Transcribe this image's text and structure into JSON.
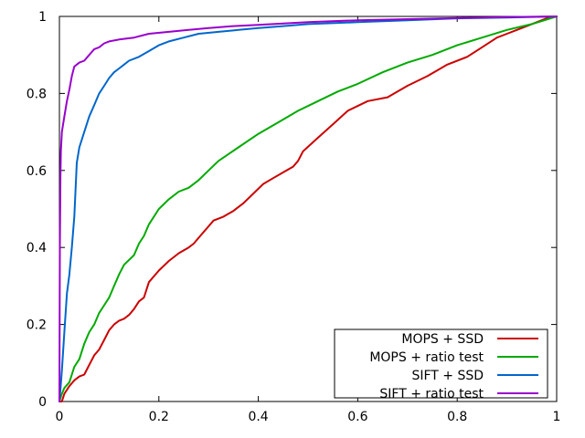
{
  "chart_data": {
    "type": "line",
    "title": "",
    "xlabel": "",
    "ylabel": "",
    "xlim": [
      0,
      1
    ],
    "ylim": [
      0,
      1
    ],
    "grid": false,
    "legend_position": "bottom-right",
    "x_ticks": [
      {
        "value": 0,
        "label": "0"
      },
      {
        "value": 0.2,
        "label": "0.2"
      },
      {
        "value": 0.4,
        "label": "0.4"
      },
      {
        "value": 0.6,
        "label": "0.6"
      },
      {
        "value": 0.8,
        "label": "0.8"
      },
      {
        "value": 1,
        "label": "1"
      }
    ],
    "y_ticks": [
      {
        "value": 0,
        "label": "0"
      },
      {
        "value": 0.2,
        "label": "0.2"
      },
      {
        "value": 0.4,
        "label": "0.4"
      },
      {
        "value": 0.6,
        "label": "0.6"
      },
      {
        "value": 0.8,
        "label": "0.8"
      },
      {
        "value": 1,
        "label": "1"
      }
    ],
    "series": [
      {
        "name": "MOPS + SSD",
        "color": "#cc0000",
        "points": [
          [
            0,
            0
          ],
          [
            0.005,
            0
          ],
          [
            0.01,
            0.02
          ],
          [
            0.02,
            0.04
          ],
          [
            0.03,
            0.055
          ],
          [
            0.04,
            0.065
          ],
          [
            0.05,
            0.07
          ],
          [
            0.06,
            0.095
          ],
          [
            0.07,
            0.12
          ],
          [
            0.08,
            0.135
          ],
          [
            0.09,
            0.16
          ],
          [
            0.1,
            0.185
          ],
          [
            0.11,
            0.2
          ],
          [
            0.12,
            0.21
          ],
          [
            0.13,
            0.215
          ],
          [
            0.14,
            0.225
          ],
          [
            0.15,
            0.24
          ],
          [
            0.16,
            0.26
          ],
          [
            0.17,
            0.27
          ],
          [
            0.18,
            0.31
          ],
          [
            0.2,
            0.34
          ],
          [
            0.22,
            0.365
          ],
          [
            0.24,
            0.385
          ],
          [
            0.26,
            0.4
          ],
          [
            0.27,
            0.41
          ],
          [
            0.28,
            0.425
          ],
          [
            0.3,
            0.455
          ],
          [
            0.31,
            0.47
          ],
          [
            0.33,
            0.48
          ],
          [
            0.35,
            0.495
          ],
          [
            0.37,
            0.515
          ],
          [
            0.39,
            0.54
          ],
          [
            0.41,
            0.565
          ],
          [
            0.43,
            0.58
          ],
          [
            0.45,
            0.595
          ],
          [
            0.47,
            0.61
          ],
          [
            0.48,
            0.625
          ],
          [
            0.49,
            0.65
          ],
          [
            0.52,
            0.685
          ],
          [
            0.55,
            0.72
          ],
          [
            0.58,
            0.755
          ],
          [
            0.62,
            0.78
          ],
          [
            0.66,
            0.79
          ],
          [
            0.7,
            0.82
          ],
          [
            0.74,
            0.845
          ],
          [
            0.76,
            0.86
          ],
          [
            0.78,
            0.875
          ],
          [
            0.82,
            0.895
          ],
          [
            0.85,
            0.92
          ],
          [
            0.88,
            0.945
          ],
          [
            0.9,
            0.955
          ],
          [
            0.92,
            0.965
          ],
          [
            0.94,
            0.975
          ],
          [
            0.96,
            0.985
          ],
          [
            0.98,
            0.995
          ],
          [
            1,
            1
          ]
        ]
      },
      {
        "name": "MOPS + ratio test",
        "color": "#00aa00",
        "points": [
          [
            0,
            0
          ],
          [
            0.005,
            0.02
          ],
          [
            0.01,
            0.035
          ],
          [
            0.02,
            0.05
          ],
          [
            0.025,
            0.07
          ],
          [
            0.03,
            0.09
          ],
          [
            0.04,
            0.11
          ],
          [
            0.05,
            0.15
          ],
          [
            0.06,
            0.18
          ],
          [
            0.07,
            0.2
          ],
          [
            0.08,
            0.23
          ],
          [
            0.09,
            0.25
          ],
          [
            0.1,
            0.27
          ],
          [
            0.11,
            0.3
          ],
          [
            0.12,
            0.33
          ],
          [
            0.13,
            0.355
          ],
          [
            0.15,
            0.38
          ],
          [
            0.16,
            0.41
          ],
          [
            0.17,
            0.43
          ],
          [
            0.18,
            0.46
          ],
          [
            0.2,
            0.5
          ],
          [
            0.22,
            0.525
          ],
          [
            0.24,
            0.545
          ],
          [
            0.26,
            0.555
          ],
          [
            0.28,
            0.575
          ],
          [
            0.3,
            0.6
          ],
          [
            0.32,
            0.625
          ],
          [
            0.36,
            0.66
          ],
          [
            0.4,
            0.695
          ],
          [
            0.44,
            0.725
          ],
          [
            0.48,
            0.755
          ],
          [
            0.52,
            0.78
          ],
          [
            0.56,
            0.805
          ],
          [
            0.6,
            0.825
          ],
          [
            0.65,
            0.855
          ],
          [
            0.7,
            0.88
          ],
          [
            0.75,
            0.9
          ],
          [
            0.8,
            0.925
          ],
          [
            0.85,
            0.945
          ],
          [
            0.9,
            0.965
          ],
          [
            0.95,
            0.98
          ],
          [
            1,
            1
          ]
        ]
      },
      {
        "name": "SIFT + SSD",
        "color": "#0066cc",
        "points": [
          [
            0,
            0
          ],
          [
            0.002,
            0.03
          ],
          [
            0.005,
            0.08
          ],
          [
            0.01,
            0.18
          ],
          [
            0.015,
            0.28
          ],
          [
            0.02,
            0.33
          ],
          [
            0.025,
            0.4
          ],
          [
            0.03,
            0.48
          ],
          [
            0.035,
            0.62
          ],
          [
            0.04,
            0.66
          ],
          [
            0.05,
            0.7
          ],
          [
            0.06,
            0.74
          ],
          [
            0.07,
            0.77
          ],
          [
            0.08,
            0.8
          ],
          [
            0.09,
            0.82
          ],
          [
            0.1,
            0.84
          ],
          [
            0.11,
            0.855
          ],
          [
            0.12,
            0.865
          ],
          [
            0.13,
            0.875
          ],
          [
            0.14,
            0.885
          ],
          [
            0.16,
            0.895
          ],
          [
            0.18,
            0.91
          ],
          [
            0.2,
            0.925
          ],
          [
            0.22,
            0.935
          ],
          [
            0.25,
            0.945
          ],
          [
            0.28,
            0.955
          ],
          [
            0.32,
            0.96
          ],
          [
            0.36,
            0.965
          ],
          [
            0.4,
            0.97
          ],
          [
            0.45,
            0.975
          ],
          [
            0.5,
            0.98
          ],
          [
            0.6,
            0.985
          ],
          [
            0.7,
            0.99
          ],
          [
            0.8,
            0.995
          ],
          [
            0.9,
            0.997
          ],
          [
            1,
            1
          ]
        ]
      },
      {
        "name": "SIFT + ratio test",
        "color": "#9900cc",
        "points": [
          [
            0,
            0
          ],
          [
            0.001,
            0.4
          ],
          [
            0.002,
            0.58
          ],
          [
            0.003,
            0.65
          ],
          [
            0.005,
            0.7
          ],
          [
            0.01,
            0.74
          ],
          [
            0.015,
            0.78
          ],
          [
            0.02,
            0.81
          ],
          [
            0.025,
            0.845
          ],
          [
            0.03,
            0.87
          ],
          [
            0.04,
            0.88
          ],
          [
            0.05,
            0.885
          ],
          [
            0.06,
            0.9
          ],
          [
            0.07,
            0.915
          ],
          [
            0.08,
            0.92
          ],
          [
            0.09,
            0.93
          ],
          [
            0.1,
            0.935
          ],
          [
            0.12,
            0.94
          ],
          [
            0.15,
            0.945
          ],
          [
            0.18,
            0.955
          ],
          [
            0.22,
            0.96
          ],
          [
            0.26,
            0.965
          ],
          [
            0.3,
            0.97
          ],
          [
            0.35,
            0.975
          ],
          [
            0.4,
            0.978
          ],
          [
            0.5,
            0.985
          ],
          [
            0.6,
            0.99
          ],
          [
            0.7,
            0.993
          ],
          [
            0.8,
            0.996
          ],
          [
            0.9,
            0.998
          ],
          [
            1,
            1
          ]
        ]
      }
    ]
  }
}
